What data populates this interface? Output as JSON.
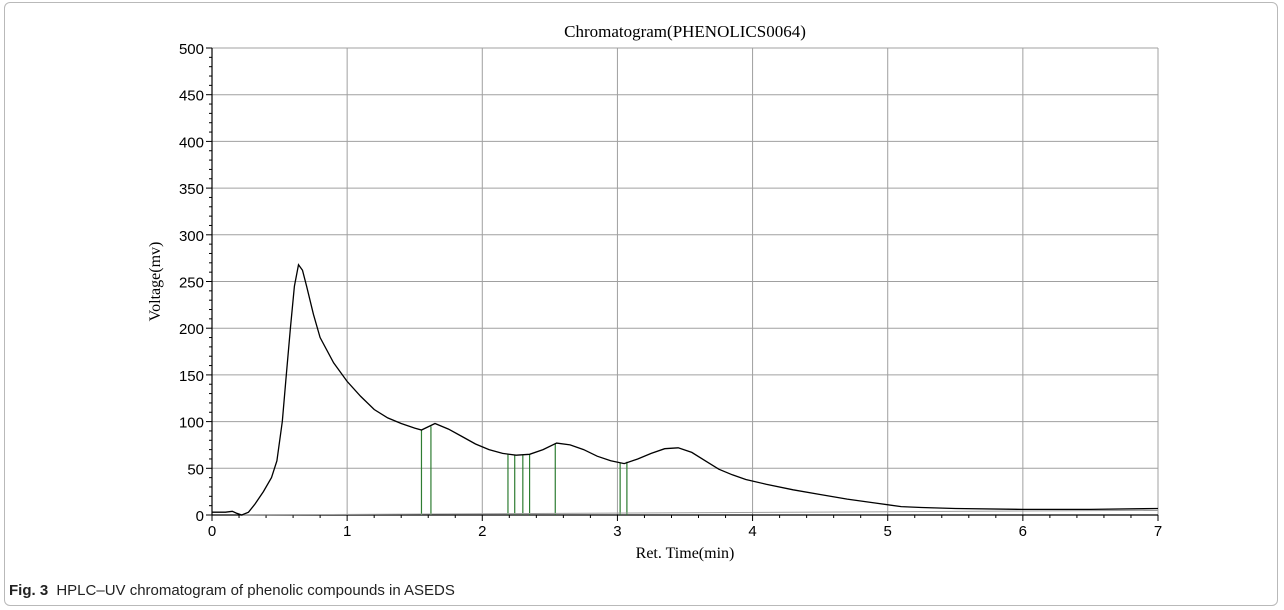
{
  "chart_data": {
    "type": "line",
    "title": "Chromatogram(PHENOLICS0064)",
    "xlabel": "Ret. Time(min)",
    "ylabel": "Voltage(mv)",
    "xlim": [
      0,
      7
    ],
    "ylim": [
      0,
      500
    ],
    "xticks": [
      0,
      1,
      2,
      3,
      4,
      5,
      6,
      7
    ],
    "yticks": [
      0,
      50,
      100,
      150,
      200,
      250,
      300,
      350,
      400,
      450,
      500
    ],
    "grid": true,
    "colors": {
      "trace": "#000000",
      "peak_markers": "#2e7d32",
      "grid": "#a0a0a0",
      "baseline": "#9e9e9e"
    },
    "series": [
      {
        "values": [
          [
            0.0,
            3
          ],
          [
            0.1,
            3
          ],
          [
            0.15,
            4
          ],
          [
            0.18,
            2
          ],
          [
            0.22,
            0
          ],
          [
            0.27,
            3
          ],
          [
            0.32,
            12
          ],
          [
            0.38,
            25
          ],
          [
            0.44,
            40
          ],
          [
            0.48,
            58
          ],
          [
            0.52,
            100
          ],
          [
            0.55,
            150
          ],
          [
            0.58,
            200
          ],
          [
            0.61,
            245
          ],
          [
            0.64,
            268
          ],
          [
            0.67,
            262
          ],
          [
            0.7,
            245
          ],
          [
            0.75,
            215
          ],
          [
            0.8,
            190
          ],
          [
            0.9,
            163
          ],
          [
            1.0,
            143
          ],
          [
            1.1,
            127
          ],
          [
            1.2,
            113
          ],
          [
            1.3,
            104
          ],
          [
            1.4,
            98
          ],
          [
            1.5,
            93
          ],
          [
            1.55,
            91
          ],
          [
            1.65,
            98
          ],
          [
            1.75,
            92
          ],
          [
            1.85,
            84
          ],
          [
            1.95,
            76
          ],
          [
            2.05,
            70
          ],
          [
            2.15,
            66
          ],
          [
            2.25,
            64
          ],
          [
            2.35,
            65
          ],
          [
            2.45,
            70
          ],
          [
            2.55,
            77
          ],
          [
            2.65,
            75
          ],
          [
            2.75,
            70
          ],
          [
            2.85,
            63
          ],
          [
            2.95,
            58
          ],
          [
            3.05,
            55
          ],
          [
            3.15,
            60
          ],
          [
            3.25,
            66
          ],
          [
            3.35,
            71
          ],
          [
            3.45,
            72
          ],
          [
            3.55,
            67
          ],
          [
            3.65,
            58
          ],
          [
            3.75,
            49
          ],
          [
            3.85,
            43
          ],
          [
            3.95,
            38
          ],
          [
            4.1,
            33
          ],
          [
            4.3,
            27
          ],
          [
            4.5,
            22
          ],
          [
            4.7,
            17
          ],
          [
            4.9,
            13
          ],
          [
            5.1,
            9
          ],
          [
            5.25,
            8
          ],
          [
            5.5,
            7
          ],
          [
            6.0,
            6
          ],
          [
            6.5,
            6
          ],
          [
            7.0,
            7
          ]
        ]
      }
    ],
    "peak_markers": [
      {
        "x": 1.55,
        "y": 91
      },
      {
        "x": 1.62,
        "y": 95
      },
      {
        "x": 2.19,
        "y": 65
      },
      {
        "x": 2.24,
        "y": 64
      },
      {
        "x": 2.3,
        "y": 64
      },
      {
        "x": 2.35,
        "y": 65
      },
      {
        "x": 2.54,
        "y": 76
      },
      {
        "x": 3.02,
        "y": 56
      },
      {
        "x": 3.07,
        "y": 57
      }
    ],
    "baseline": [
      [
        0.22,
        0
      ],
      [
        7.0,
        5
      ]
    ]
  },
  "caption": {
    "label": "Fig. 3",
    "text": "HPLC–UV chromatogram of phenolic compounds in ASEDS"
  }
}
